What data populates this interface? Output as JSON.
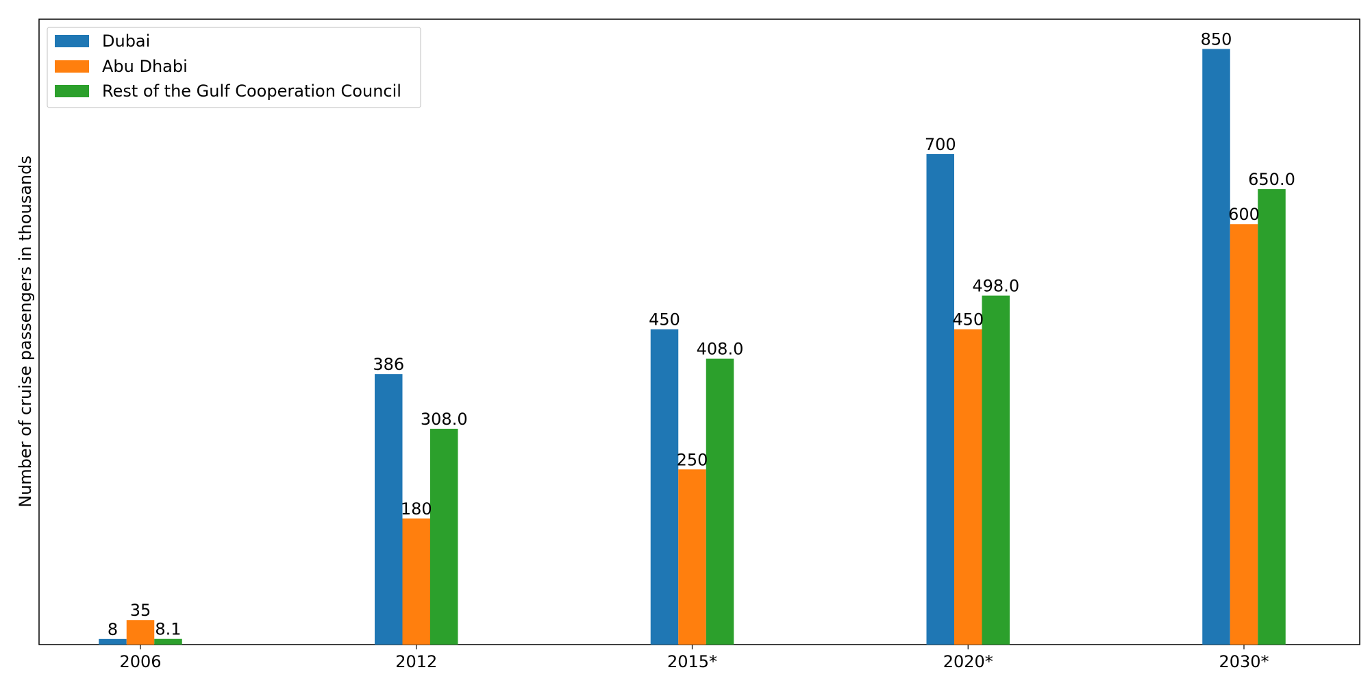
{
  "chart_data": {
    "type": "bar",
    "title": "",
    "xlabel": "",
    "ylabel": "Number of cruise passengers in thousands",
    "categories": [
      "2006",
      "2012",
      "2015*",
      "2020*",
      "2030*"
    ],
    "series": [
      {
        "name": "Dubai",
        "values": [
          8,
          386,
          450,
          700,
          850
        ],
        "labels": [
          "8",
          "386",
          "450",
          "700",
          "850"
        ],
        "color": "#1f77b4"
      },
      {
        "name": "Abu Dhabi",
        "values": [
          35,
          180,
          250,
          450,
          600
        ],
        "labels": [
          "35",
          "180",
          "250",
          "450",
          "600"
        ],
        "color": "#ff7f0e"
      },
      {
        "name": "Rest of the Gulf Cooperation Council",
        "values": [
          8.1,
          308,
          408,
          498,
          650
        ],
        "labels": [
          "8.1",
          "308.0",
          "408.0",
          "498.0",
          "650.0"
        ],
        "color": "#2ca02c"
      }
    ],
    "ylim": [
      0,
      892.5
    ],
    "y_ticks_visible": false,
    "grid": false,
    "legend_position": "upper-left"
  }
}
